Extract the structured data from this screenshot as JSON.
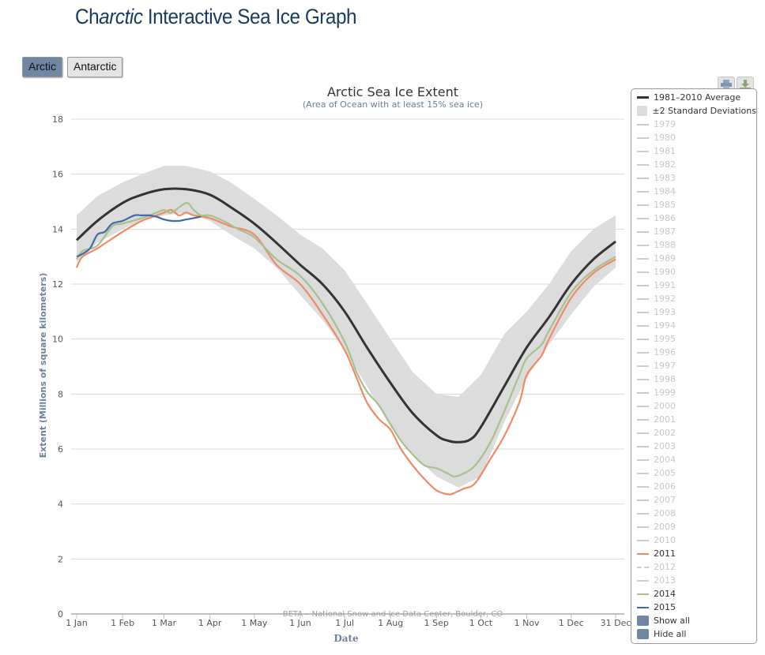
{
  "header": {
    "title_prefix": "Ch",
    "title_italic": "arctic",
    "title_suffix": " Interactive Sea Ice Graph"
  },
  "region_buttons": [
    {
      "label": "Arctic",
      "active": true
    },
    {
      "label": "Antarctic",
      "active": false
    }
  ],
  "toolbar": {
    "print_icon": "printer-icon",
    "download_icon": "download-icon"
  },
  "legend": {
    "items": [
      {
        "label": "1981–2010 Average",
        "type": "line",
        "color": "#333333",
        "active": true
      },
      {
        "label": "±2 Standard Deviations",
        "type": "band",
        "color": "#dcdcdc",
        "active": true
      },
      {
        "label": "1979",
        "type": "line",
        "color": "#cccccc",
        "active": false
      },
      {
        "label": "1980",
        "type": "line",
        "color": "#cccccc",
        "active": false
      },
      {
        "label": "1981",
        "type": "line",
        "color": "#cccccc",
        "active": false
      },
      {
        "label": "1982",
        "type": "line",
        "color": "#cccccc",
        "active": false
      },
      {
        "label": "1983",
        "type": "line",
        "color": "#cccccc",
        "active": false
      },
      {
        "label": "1984",
        "type": "line",
        "color": "#cccccc",
        "active": false
      },
      {
        "label": "1985",
        "type": "line",
        "color": "#cccccc",
        "active": false
      },
      {
        "label": "1986",
        "type": "line",
        "color": "#cccccc",
        "active": false
      },
      {
        "label": "1987",
        "type": "line",
        "color": "#cccccc",
        "active": false
      },
      {
        "label": "1988",
        "type": "line",
        "color": "#cccccc",
        "active": false
      },
      {
        "label": "1989",
        "type": "line",
        "color": "#cccccc",
        "active": false
      },
      {
        "label": "1990",
        "type": "line",
        "color": "#cccccc",
        "active": false
      },
      {
        "label": "1991",
        "type": "line",
        "color": "#cccccc",
        "active": false
      },
      {
        "label": "1992",
        "type": "line",
        "color": "#cccccc",
        "active": false
      },
      {
        "label": "1993",
        "type": "line",
        "color": "#cccccc",
        "active": false
      },
      {
        "label": "1994",
        "type": "line",
        "color": "#cccccc",
        "active": false
      },
      {
        "label": "1995",
        "type": "line",
        "color": "#cccccc",
        "active": false
      },
      {
        "label": "1996",
        "type": "line",
        "color": "#cccccc",
        "active": false
      },
      {
        "label": "1997",
        "type": "line",
        "color": "#cccccc",
        "active": false
      },
      {
        "label": "1998",
        "type": "line",
        "color": "#cccccc",
        "active": false
      },
      {
        "label": "1999",
        "type": "line",
        "color": "#cccccc",
        "active": false
      },
      {
        "label": "2000",
        "type": "line",
        "color": "#cccccc",
        "active": false
      },
      {
        "label": "2001",
        "type": "line",
        "color": "#cccccc",
        "active": false
      },
      {
        "label": "2002",
        "type": "line",
        "color": "#cccccc",
        "active": false
      },
      {
        "label": "2003",
        "type": "line",
        "color": "#cccccc",
        "active": false
      },
      {
        "label": "2004",
        "type": "line",
        "color": "#cccccc",
        "active": false
      },
      {
        "label": "2005",
        "type": "line",
        "color": "#cccccc",
        "active": false
      },
      {
        "label": "2006",
        "type": "line",
        "color": "#cccccc",
        "active": false
      },
      {
        "label": "2007",
        "type": "line",
        "color": "#cccccc",
        "active": false
      },
      {
        "label": "2008",
        "type": "line",
        "color": "#cccccc",
        "active": false
      },
      {
        "label": "2009",
        "type": "line",
        "color": "#cccccc",
        "active": false
      },
      {
        "label": "2010",
        "type": "line",
        "color": "#cccccc",
        "active": false
      },
      {
        "label": "2011",
        "type": "line",
        "color": "#f08a64",
        "active": true
      },
      {
        "label": "2012",
        "type": "dashed",
        "color": "#cccccc",
        "active": false
      },
      {
        "label": "2013",
        "type": "line",
        "color": "#cccccc",
        "active": false
      },
      {
        "label": "2014",
        "type": "line",
        "color": "#a7c08e",
        "active": true
      },
      {
        "label": "2015",
        "type": "line",
        "color": "#3f6aa6",
        "active": true
      }
    ],
    "show_all": "Show all",
    "hide_all": "Hide all"
  },
  "chart_data": {
    "type": "line",
    "title": "Arctic Sea Ice Extent",
    "subtitle": "(Area of Ocean with at least 15% sea ice)",
    "xlabel": "Date",
    "ylabel": "Extent (Millions of square kilometers)",
    "credit": "BETA – National Snow and Ice Data Center, Boulder, CO",
    "xlim": [
      1,
      365
    ],
    "ylim": [
      0,
      18
    ],
    "yticks": [
      0,
      2,
      4,
      6,
      8,
      10,
      12,
      14,
      16,
      18
    ],
    "xticks": [
      {
        "day": 1,
        "label": "1 Jan"
      },
      {
        "day": 32,
        "label": "1 Feb"
      },
      {
        "day": 60,
        "label": "1 Mar"
      },
      {
        "day": 91,
        "label": "1 Apr"
      },
      {
        "day": 121,
        "label": "1 May"
      },
      {
        "day": 152,
        "label": "1 Jun"
      },
      {
        "day": 182,
        "label": "1 Jul"
      },
      {
        "day": 213,
        "label": "1 Aug"
      },
      {
        "day": 244,
        "label": "1 Sep"
      },
      {
        "day": 274,
        "label": "1 Oct"
      },
      {
        "day": 305,
        "label": "1 Nov"
      },
      {
        "day": 335,
        "label": "1 Dec"
      },
      {
        "day": 365,
        "label": "31 Dec"
      }
    ],
    "grid": true,
    "legend_position": "right",
    "band": {
      "name": "±2 Standard Deviations",
      "color": "#dcdcdc",
      "x": [
        1,
        15,
        32,
        45,
        60,
        75,
        91,
        105,
        121,
        136,
        152,
        167,
        182,
        197,
        213,
        228,
        244,
        259,
        274,
        290,
        305,
        320,
        335,
        350,
        365
      ],
      "upper": [
        14.5,
        15.2,
        15.7,
        16.0,
        16.3,
        16.3,
        16.1,
        15.7,
        15.1,
        14.5,
        13.8,
        13.3,
        12.5,
        11.3,
        10.0,
        8.8,
        8.0,
        7.9,
        8.7,
        10.2,
        11.0,
        12.0,
        13.2,
        14.0,
        14.5
      ],
      "lower": [
        12.8,
        13.5,
        14.0,
        14.3,
        14.5,
        14.6,
        14.3,
        13.8,
        13.3,
        12.6,
        11.6,
        10.7,
        9.6,
        8.3,
        6.8,
        5.8,
        5.0,
        4.6,
        5.0,
        7.0,
        8.6,
        9.8,
        10.9,
        11.9,
        12.6
      ]
    },
    "series": [
      {
        "name": "1981–2010 Average",
        "color": "#333333",
        "x": [
          1,
          15,
          32,
          45,
          60,
          75,
          91,
          105,
          121,
          136,
          152,
          167,
          182,
          197,
          213,
          228,
          244,
          252,
          259,
          267,
          274,
          290,
          305,
          320,
          335,
          350,
          365
        ],
        "values": [
          13.6,
          14.3,
          14.95,
          15.25,
          15.45,
          15.45,
          15.25,
          14.8,
          14.2,
          13.5,
          12.7,
          12.0,
          11.0,
          9.7,
          8.4,
          7.3,
          6.5,
          6.3,
          6.25,
          6.35,
          6.8,
          8.3,
          9.7,
          10.8,
          12.0,
          12.9,
          13.55
        ]
      },
      {
        "name": "2011",
        "color": "#f08a64",
        "x": [
          1,
          5,
          15,
          32,
          45,
          55,
          60,
          65,
          70,
          75,
          80,
          91,
          105,
          121,
          136,
          152,
          167,
          182,
          190,
          197,
          205,
          213,
          220,
          228,
          236,
          244,
          252,
          256,
          262,
          270,
          280,
          290,
          300,
          305,
          315,
          320,
          335,
          350,
          365
        ],
        "values": [
          12.6,
          13.0,
          13.3,
          13.9,
          14.3,
          14.5,
          14.6,
          14.7,
          14.5,
          14.6,
          14.5,
          14.4,
          14.1,
          13.8,
          12.7,
          12.0,
          10.9,
          9.6,
          8.6,
          7.7,
          7.1,
          6.7,
          6.0,
          5.4,
          4.9,
          4.5,
          4.35,
          4.4,
          4.55,
          4.75,
          5.6,
          6.5,
          7.7,
          8.7,
          9.4,
          10.0,
          11.5,
          12.4,
          12.9
        ]
      },
      {
        "name": "2014",
        "color": "#a7c08e",
        "x": [
          1,
          5,
          15,
          25,
          32,
          45,
          55,
          60,
          65,
          75,
          80,
          85,
          91,
          100,
          110,
          121,
          136,
          152,
          167,
          182,
          190,
          197,
          205,
          213,
          220,
          228,
          236,
          244,
          252,
          256,
          262,
          270,
          280,
          290,
          300,
          305,
          315,
          320,
          335,
          350,
          365
        ],
        "values": [
          12.9,
          13.2,
          13.4,
          14.1,
          14.2,
          14.4,
          14.6,
          14.7,
          14.6,
          14.95,
          14.7,
          14.5,
          14.5,
          14.3,
          14.0,
          13.7,
          12.9,
          12.3,
          11.3,
          9.9,
          8.8,
          8.1,
          7.6,
          6.9,
          6.3,
          5.8,
          5.4,
          5.3,
          5.1,
          5.0,
          5.1,
          5.4,
          6.2,
          7.4,
          8.7,
          9.3,
          9.8,
          10.3,
          11.7,
          12.5,
          13.0
        ]
      },
      {
        "name": "2015",
        "color": "#3f6aa6",
        "x": [
          1,
          5,
          10,
          15,
          20,
          25,
          32,
          40,
          45,
          50,
          55,
          60,
          65,
          70,
          75,
          80,
          85
        ],
        "values": [
          13.0,
          13.1,
          13.3,
          13.8,
          13.9,
          14.2,
          14.3,
          14.5,
          14.5,
          14.5,
          14.45,
          14.35,
          14.3,
          14.3,
          14.35,
          14.4,
          14.45
        ]
      }
    ]
  }
}
